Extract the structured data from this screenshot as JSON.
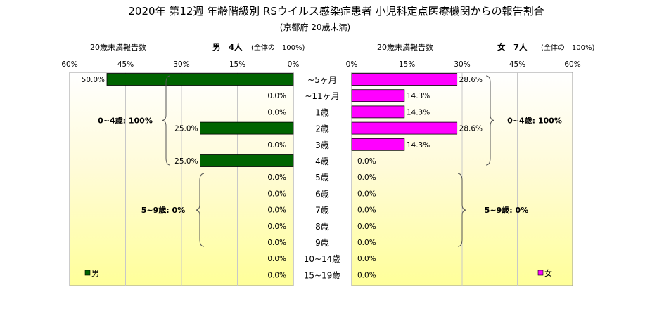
{
  "chart_data": {
    "type": "bar",
    "title": "2020年 第12週 年齢階級別 RSウイルス感染症患者 小児科定点医療機関からの報告割合",
    "subtitle": "(京都府 20歳未満)",
    "categories": [
      "~5ヶ月",
      "~11ヶ月",
      "1歳",
      "2歳",
      "3歳",
      "4歳",
      "5歳",
      "6歳",
      "7歳",
      "8歳",
      "9歳",
      "10~14歳",
      "15~19歳"
    ],
    "series": [
      {
        "name": "男",
        "axis_caption": "20歳未満報告数",
        "header": "男　4人",
        "header_note": "(全体の　100%)",
        "values": [
          50.0,
          0.0,
          0.0,
          25.0,
          0.0,
          25.0,
          0.0,
          0.0,
          0.0,
          0.0,
          0.0,
          0.0,
          0.0
        ],
        "value_labels": [
          "50.0%",
          "0.0%",
          "0.0%",
          "25.0%",
          "0.0%",
          "25.0%",
          "0.0%",
          "0.0%",
          "0.0%",
          "0.0%",
          "0.0%",
          "0.0%",
          "0.0%"
        ],
        "color": "#006400",
        "ticks": [
          "60%",
          "45%",
          "30%",
          "15%",
          "0%"
        ],
        "brackets": [
          {
            "label": "0~4歳: 100%",
            "from": 0,
            "to": 5
          },
          {
            "label": "5~9歳: 0%",
            "from": 6,
            "to": 10
          }
        ]
      },
      {
        "name": "女",
        "axis_caption": "20歳未満報告数",
        "header": "女　7人",
        "header_note": "(全体の　100%)",
        "values": [
          28.6,
          14.3,
          14.3,
          28.6,
          14.3,
          0.0,
          0.0,
          0.0,
          0.0,
          0.0,
          0.0,
          0.0,
          0.0
        ],
        "value_labels": [
          "28.6%",
          "14.3%",
          "14.3%",
          "28.6%",
          "14.3%",
          "0.0%",
          "0.0%",
          "0.0%",
          "0.0%",
          "0.0%",
          "0.0%",
          "0.0%",
          "0.0%"
        ],
        "color": "#ff00ff",
        "ticks": [
          "0%",
          "15%",
          "30%",
          "45%",
          "60%"
        ],
        "brackets": [
          {
            "label": "0~4歳: 100%",
            "from": 0,
            "to": 5
          },
          {
            "label": "5~9歳: 0%",
            "from": 6,
            "to": 10
          }
        ]
      }
    ],
    "xlim": [
      0,
      60
    ],
    "grid": true,
    "legend": "bottom-outer-corners"
  }
}
